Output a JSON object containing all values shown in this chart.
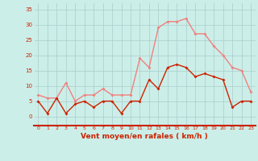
{
  "hours": [
    0,
    1,
    2,
    3,
    4,
    5,
    6,
    7,
    8,
    9,
    10,
    11,
    12,
    13,
    14,
    15,
    16,
    17,
    18,
    19,
    20,
    21,
    22,
    23
  ],
  "wind_avg": [
    5,
    1,
    6,
    1,
    4,
    5,
    3,
    5,
    5,
    1,
    5,
    5,
    12,
    9,
    16,
    17,
    16,
    13,
    14,
    13,
    12,
    3,
    5,
    5
  ],
  "wind_gust": [
    7,
    6,
    6,
    11,
    5,
    7,
    7,
    9,
    7,
    7,
    7,
    19,
    16,
    29,
    31,
    31,
    32,
    27,
    27,
    23,
    20,
    16,
    15,
    8
  ],
  "color_avg": "#cc2200",
  "color_gust": "#f08080",
  "bg_color": "#cceee8",
  "grid_color": "#aacccc",
  "xlabel": "Vent moyen/en rafales ( km/h )",
  "xlabel_color": "#cc2200",
  "tick_color": "#cc2200",
  "spine_color": "#cc2200",
  "ylim": [
    -3,
    37
  ],
  "yticks": [
    0,
    5,
    10,
    15,
    20,
    25,
    30,
    35
  ],
  "marker": "D",
  "markersize": 2,
  "linewidth": 1.0
}
